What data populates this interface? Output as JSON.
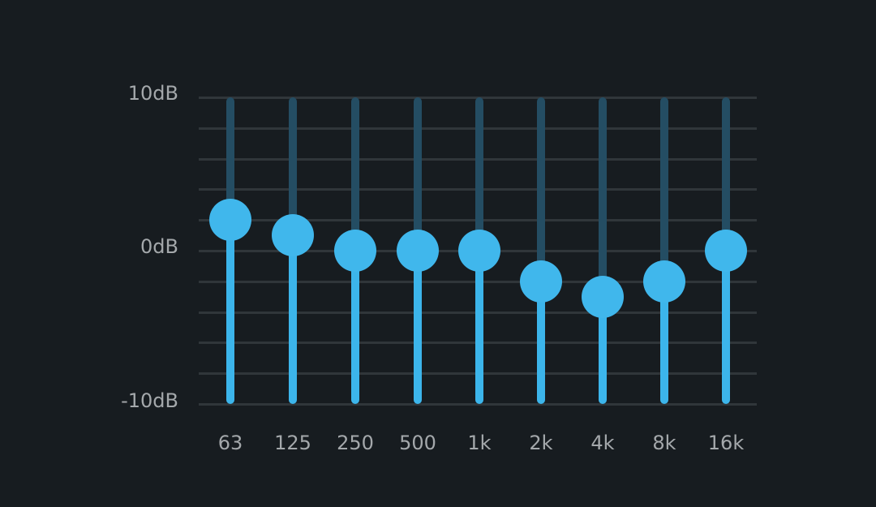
{
  "equalizer": {
    "y_axis": {
      "max_label": "10dB",
      "mid_label": "0dB",
      "min_label": "-10dB",
      "max_db": 10,
      "min_db": -10
    },
    "bands": [
      {
        "label": "63",
        "gain_db": 2
      },
      {
        "label": "125",
        "gain_db": 1
      },
      {
        "label": "250",
        "gain_db": 0
      },
      {
        "label": "500",
        "gain_db": 0
      },
      {
        "label": "1k",
        "gain_db": 0
      },
      {
        "label": "2k",
        "gain_db": -2
      },
      {
        "label": "4k",
        "gain_db": -3
      },
      {
        "label": "8k",
        "gain_db": -2
      },
      {
        "label": "16k",
        "gain_db": 0
      }
    ],
    "colors": {
      "background": "#171c20",
      "active_track": "#3cb5eb",
      "inactive_track": "#244d63",
      "knob": "#40b7ec",
      "grid": "#30363a",
      "label": "#a4a8ab"
    }
  }
}
